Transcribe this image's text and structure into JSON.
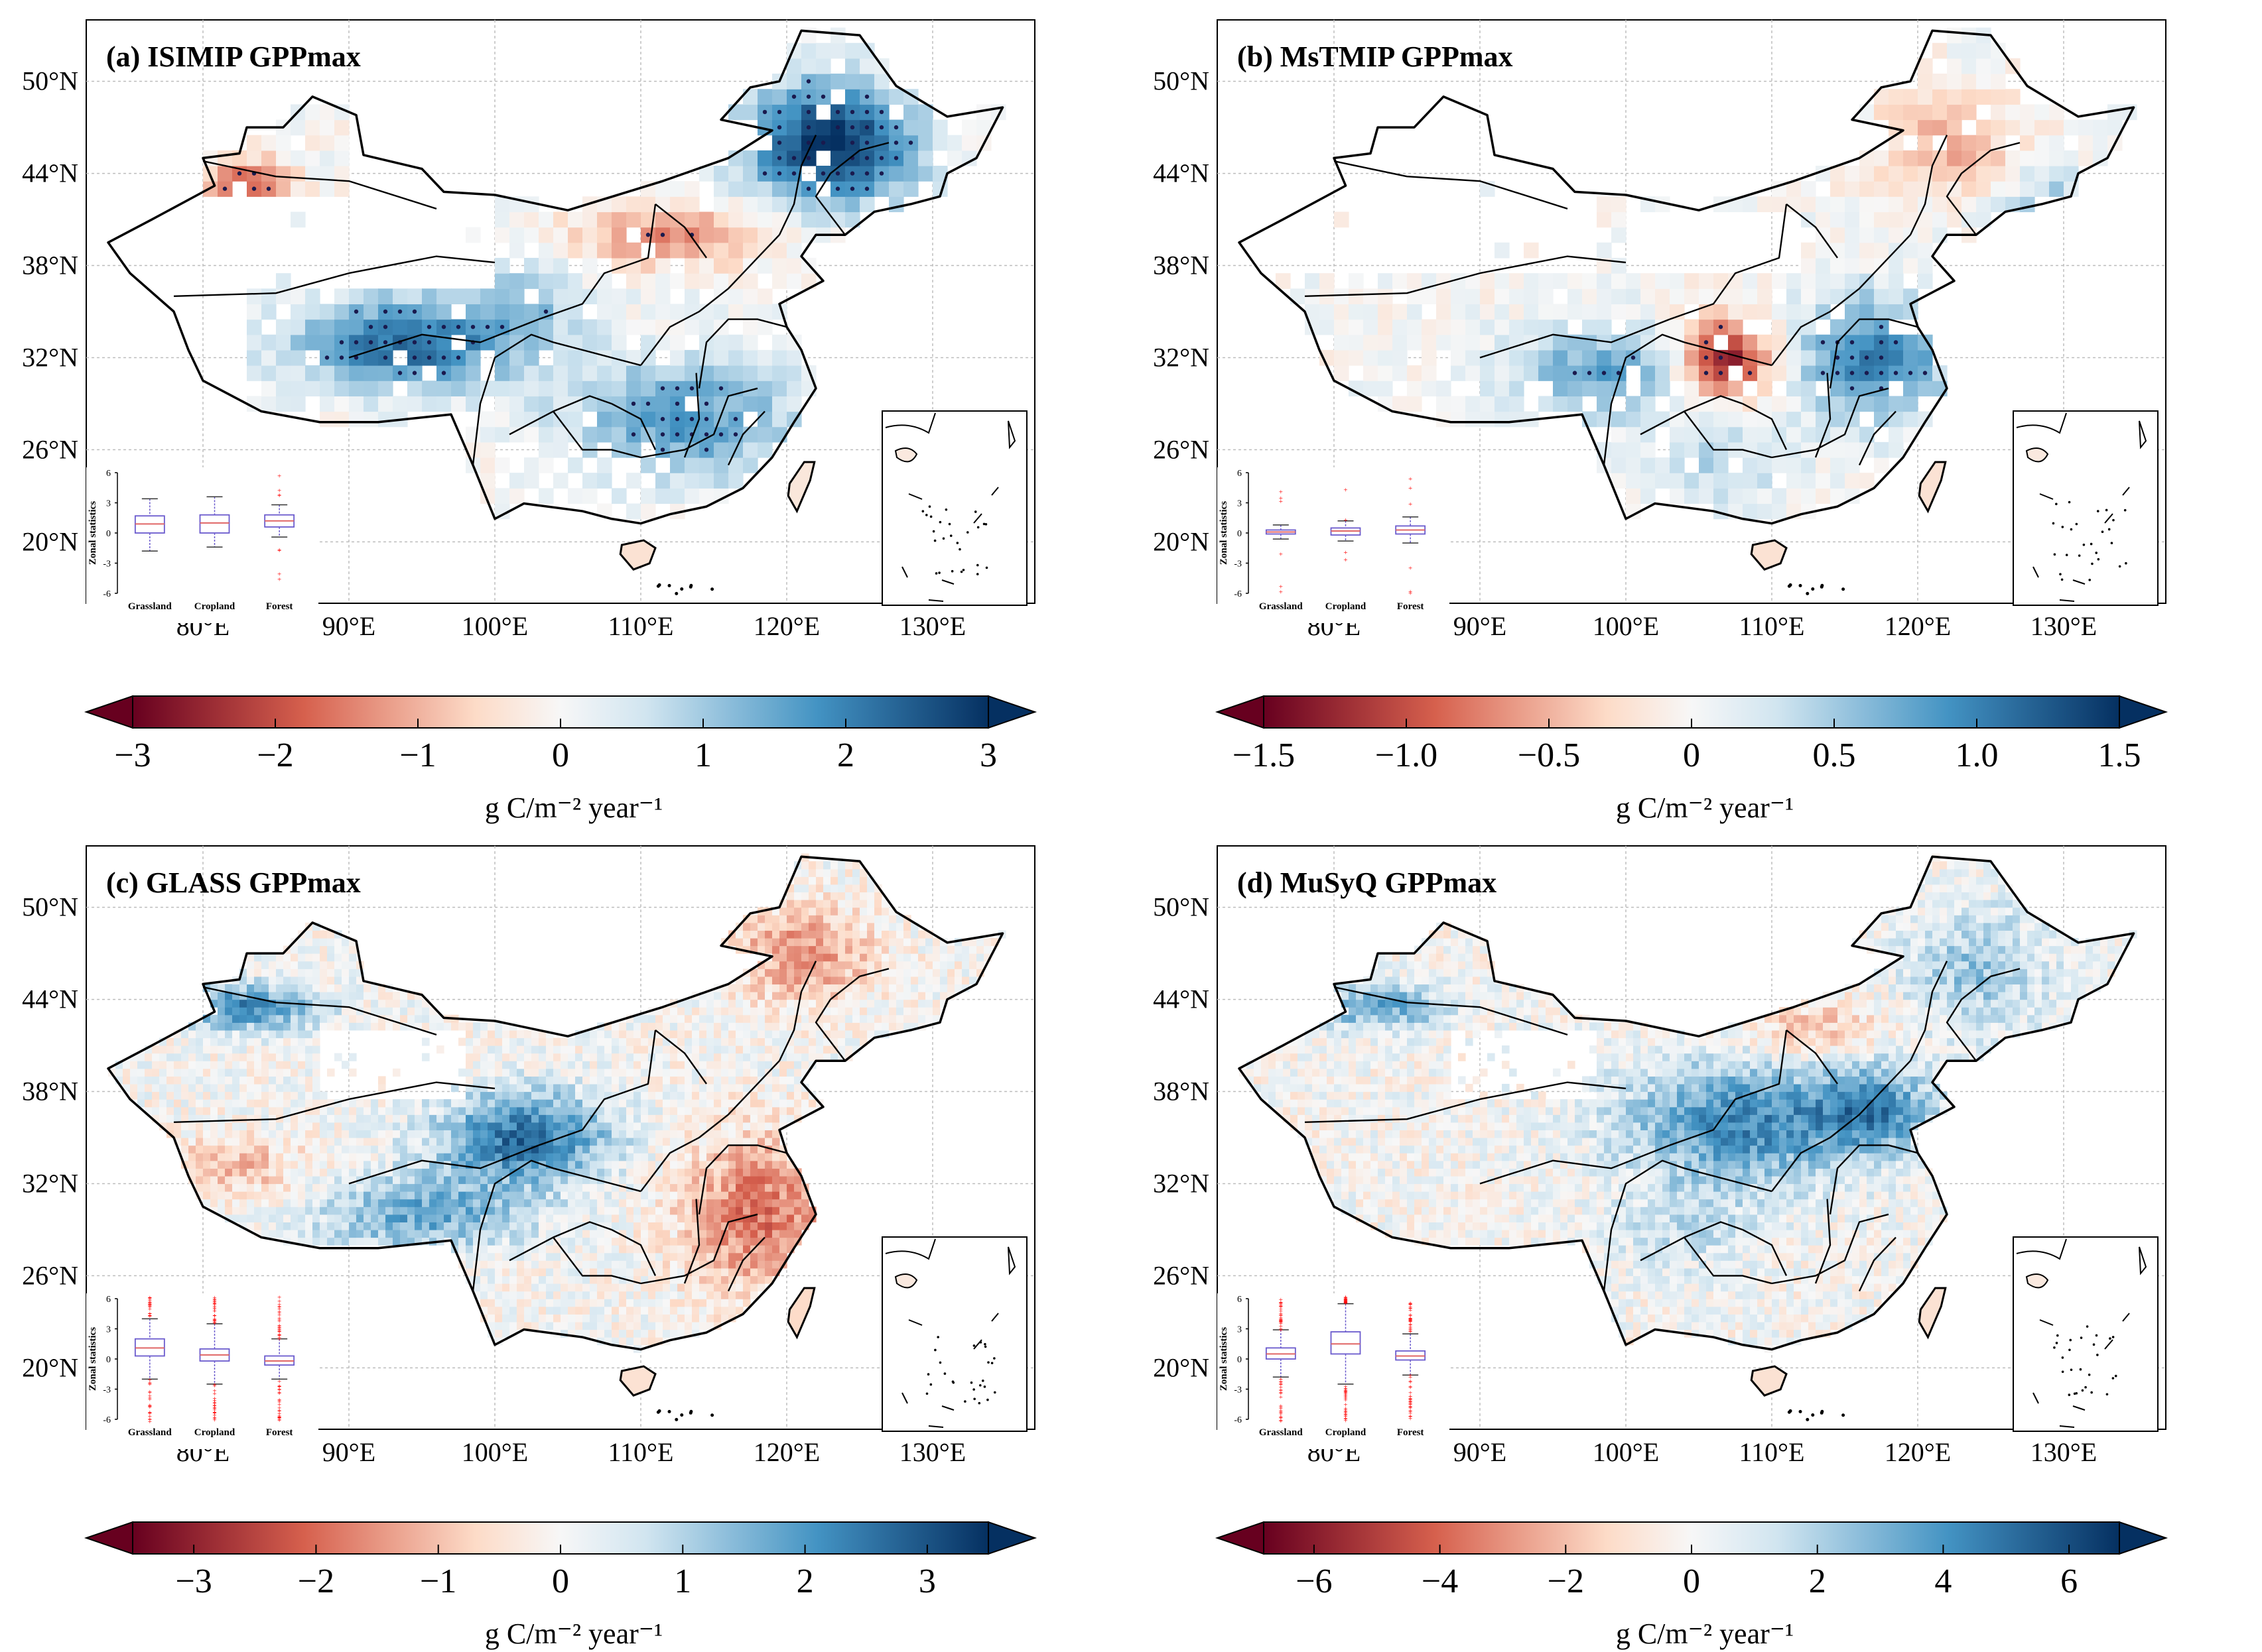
{
  "figure": {
    "description_units": "g C/m⁻² year⁻¹"
  },
  "colors": {
    "neg_dark": "#67001f",
    "neg_mid": "#d6604d",
    "neg_light": "#fddbc7",
    "zero": "#f7f7f7",
    "pos_light": "#d1e5f0",
    "pos_mid": "#4393c3",
    "pos_dark": "#053061",
    "stipple": "#1a1a4e",
    "box_edge": "#6a5acd",
    "median": "#e06666",
    "outlier": "#ff0000",
    "border": "#000000",
    "grid": "#bdbdbd"
  },
  "chart_data": [
    {
      "id": "a",
      "type": "heatmap",
      "title": "(a) ISIMIP GPPmax",
      "xlabel": "",
      "ylabel": "",
      "x_ticks": [
        "80°E",
        "90°E",
        "100°E",
        "110°E",
        "120°E",
        "130°E"
      ],
      "y_ticks": [
        "50°N",
        "44°N",
        "38°N",
        "32°N",
        "26°N",
        "20°N"
      ],
      "lon_range": [
        72,
        137
      ],
      "lat_range": [
        16,
        54
      ],
      "grid_style": "coarse",
      "stippling": true,
      "colorbar": {
        "min": -3,
        "max": 3,
        "ticks": [
          "−3",
          "−2",
          "−1",
          "0",
          "1",
          "2",
          "3"
        ],
        "label": "g C/m⁻² year⁻¹"
      },
      "zonal_stats": {
        "ylabel": "Zonal statistics",
        "ylim": [
          -6,
          6
        ],
        "yticks": [
          "6",
          "3",
          "0",
          "-3",
          "-6"
        ],
        "categories": [
          "Grassland",
          "Cropland",
          "Forest"
        ],
        "boxes": [
          {
            "q1": 0.0,
            "median": 0.9,
            "q3": 1.7,
            "whisker_low": -1.8,
            "whisker_high": 3.4,
            "outliers": 0
          },
          {
            "q1": 0.0,
            "median": 1.0,
            "q3": 1.8,
            "whisker_low": -1.4,
            "whisker_high": 3.6,
            "outliers": 0
          },
          {
            "q1": 0.6,
            "median": 1.2,
            "q3": 1.8,
            "whisker_low": -0.4,
            "whisker_high": 2.8,
            "outliers": 8
          }
        ]
      }
    },
    {
      "id": "b",
      "type": "heatmap",
      "title": "(b) MsTMIP GPPmax",
      "xlabel": "",
      "ylabel": "",
      "x_ticks": [
        "80°E",
        "90°E",
        "100°E",
        "110°E",
        "120°E",
        "130°E"
      ],
      "y_ticks": [
        "50°N",
        "44°N",
        "38°N",
        "32°N",
        "26°N",
        "20°N"
      ],
      "lon_range": [
        72,
        137
      ],
      "lat_range": [
        16,
        54
      ],
      "grid_style": "coarse",
      "stippling": true,
      "colorbar": {
        "min": -1.5,
        "max": 1.5,
        "ticks": [
          "−1.5",
          "−1.0",
          "−0.5",
          "0",
          "0.5",
          "1.0",
          "1.5"
        ],
        "label": "g C/m⁻² year⁻¹"
      },
      "zonal_stats": {
        "ylabel": "Zonal statistics",
        "ylim": [
          -6,
          6
        ],
        "yticks": [
          "6",
          "3",
          "0",
          "-3",
          "-6"
        ],
        "categories": [
          "Grassland",
          "Cropland",
          "Forest"
        ],
        "boxes": [
          {
            "q1": -0.1,
            "median": 0.1,
            "q3": 0.3,
            "whisker_low": -0.6,
            "whisker_high": 0.8,
            "outliers": 6
          },
          {
            "q1": -0.2,
            "median": 0.2,
            "q3": 0.5,
            "whisker_low": -0.8,
            "whisker_high": 1.2,
            "outliers": 4
          },
          {
            "q1": -0.1,
            "median": 0.3,
            "q3": 0.7,
            "whisker_low": -1.0,
            "whisker_high": 1.6,
            "outliers": 6
          }
        ]
      }
    },
    {
      "id": "c",
      "type": "heatmap",
      "title": "(c) GLASS GPPmax",
      "xlabel": "",
      "ylabel": "",
      "x_ticks": [
        "80°E",
        "90°E",
        "100°E",
        "110°E",
        "120°E",
        "130°E"
      ],
      "y_ticks": [
        "50°N",
        "44°N",
        "38°N",
        "32°N",
        "26°N",
        "20°N"
      ],
      "lon_range": [
        72,
        137
      ],
      "lat_range": [
        16,
        54
      ],
      "grid_style": "fine",
      "stippling": false,
      "colorbar": {
        "min": -3.5,
        "max": 3.5,
        "ticks": [
          "−3",
          "−2",
          "−1",
          "0",
          "1",
          "2",
          "3"
        ],
        "tick_values": [
          -3,
          -2,
          -1,
          0,
          1,
          2,
          3
        ],
        "label": "g C/m⁻² year⁻¹"
      },
      "zonal_stats": {
        "ylabel": "Zonal statistics",
        "ylim": [
          -6,
          6
        ],
        "yticks": [
          "6",
          "3",
          "0",
          "-3",
          "-6"
        ],
        "categories": [
          "Grassland",
          "Cropland",
          "Forest"
        ],
        "boxes": [
          {
            "q1": 0.3,
            "median": 1.1,
            "q3": 2.0,
            "whisker_low": -2.0,
            "whisker_high": 4.0,
            "outliers": 40
          },
          {
            "q1": -0.2,
            "median": 0.4,
            "q3": 1.0,
            "whisker_low": -2.5,
            "whisker_high": 3.5,
            "outliers": 45
          },
          {
            "q1": -0.6,
            "median": -0.2,
            "q3": 0.3,
            "whisker_low": -2.0,
            "whisker_high": 2.0,
            "outliers": 50
          }
        ]
      }
    },
    {
      "id": "d",
      "type": "heatmap",
      "title": "(d) MuSyQ GPPmax",
      "xlabel": "",
      "ylabel": "",
      "x_ticks": [
        "80°E",
        "90°E",
        "100°E",
        "110°E",
        "120°E",
        "130°E"
      ],
      "y_ticks": [
        "50°N",
        "44°N",
        "38°N",
        "32°N",
        "26°N",
        "20°N"
      ],
      "lon_range": [
        72,
        137
      ],
      "lat_range": [
        16,
        54
      ],
      "grid_style": "fine",
      "stippling": false,
      "colorbar": {
        "min": -6.8,
        "max": 6.8,
        "ticks": [
          "−6",
          "−4",
          "−2",
          "0",
          "2",
          "4",
          "6"
        ],
        "tick_values": [
          -6,
          -4,
          -2,
          0,
          2,
          4,
          6
        ],
        "label": "g C/m⁻² year⁻¹"
      },
      "zonal_stats": {
        "ylabel": "Zonal statistics",
        "ylim": [
          -6,
          6
        ],
        "yticks": [
          "6",
          "3",
          "0",
          "-3",
          "-6"
        ],
        "categories": [
          "Grassland",
          "Cropland",
          "Forest"
        ],
        "boxes": [
          {
            "q1": 0.0,
            "median": 0.5,
            "q3": 1.1,
            "whisker_low": -1.8,
            "whisker_high": 2.9,
            "outliers": 55
          },
          {
            "q1": 0.5,
            "median": 1.5,
            "q3": 2.7,
            "whisker_low": -2.5,
            "whisker_high": 5.5,
            "outliers": 55
          },
          {
            "q1": -0.1,
            "median": 0.3,
            "q3": 0.8,
            "whisker_low": -1.6,
            "whisker_high": 2.5,
            "outliers": 55
          }
        ]
      }
    }
  ]
}
